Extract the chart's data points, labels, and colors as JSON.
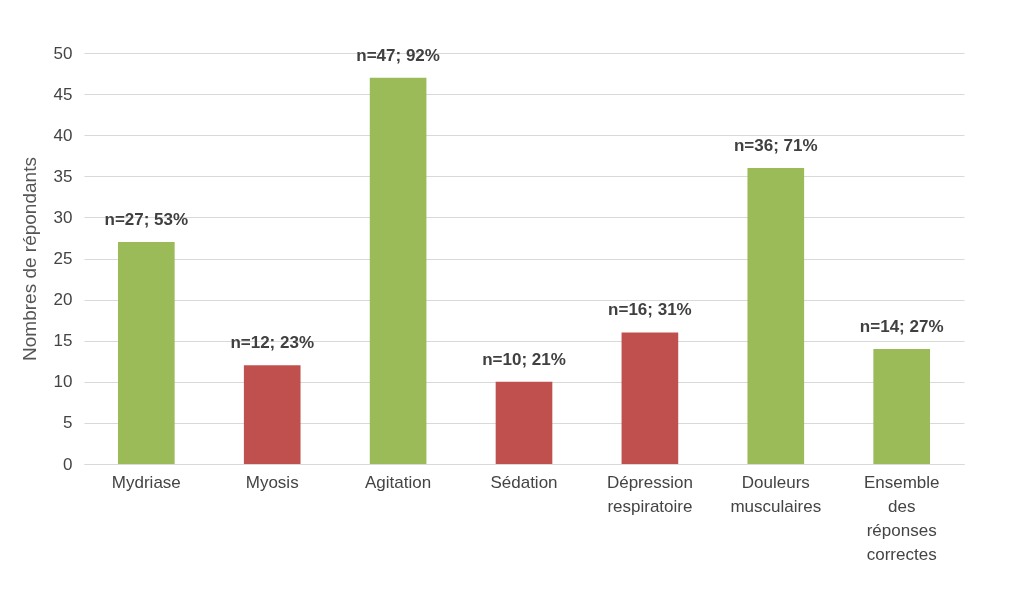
{
  "chart_data": {
    "type": "bar",
    "ylabel": "Nombres de répondants",
    "categories": [
      "Mydriase",
      "Myosis",
      "Agitation",
      "Sédation",
      "Dépression respiratoire",
      "Douleurs musculaires",
      "Ensemble des réponses correctes"
    ],
    "values": [
      27,
      12,
      47,
      10,
      16,
      36,
      14
    ],
    "colors": [
      "#9bbb59",
      "#c0504d",
      "#9bbb59",
      "#c0504d",
      "#c0504d",
      "#9bbb59",
      "#9bbb59"
    ],
    "value_labels": [
      "n=27; 53%",
      "n=12; 23%",
      "n=47; 92%",
      "n=10; 21%",
      "n=16; 31%",
      "n=36; 71%",
      "n=14; 27%"
    ],
    "ylim": [
      0,
      50
    ],
    "yticks": [
      0,
      5,
      10,
      15,
      20,
      25,
      30,
      35,
      40,
      45,
      50
    ],
    "grid": "y"
  }
}
